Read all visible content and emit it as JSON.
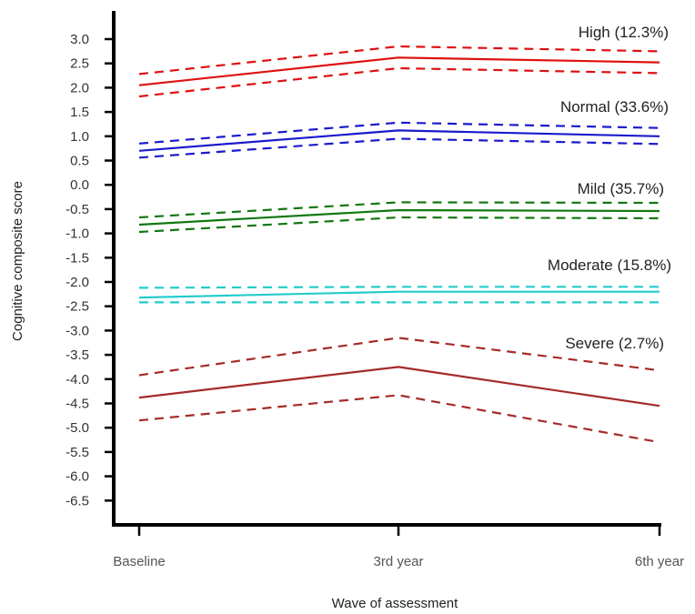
{
  "chart_data": {
    "type": "line",
    "xlabel": "Wave of assessment",
    "ylabel": "Cognitive composite score",
    "categories": [
      "Baseline",
      "3rd year",
      "6th year"
    ],
    "ylim": [
      -7.0,
      3.3
    ],
    "yticks": [
      3.0,
      2.5,
      2.0,
      1.5,
      1.0,
      0.5,
      0.0,
      -0.5,
      -1.0,
      -1.5,
      -2.0,
      -2.5,
      -3.0,
      -3.5,
      -4.0,
      -4.5,
      -5.0,
      -5.5,
      -6.0,
      -6.5
    ],
    "ytick_labels": [
      "3.0",
      "2.5",
      "2.0",
      "1.5",
      "1.0",
      "0.5",
      "0.0",
      "-0.5",
      "-1.0",
      "-1.5",
      "-2.0",
      "-2.5",
      "-3.0",
      "-3.5",
      "-4.0",
      "-4.5",
      "-5.0",
      "-5.5",
      "-6.0",
      "-6.5"
    ],
    "grid": false,
    "series": [
      {
        "name": "High (12.3%)",
        "color": "#dd1111",
        "values": [
          2.05,
          2.62,
          2.52
        ],
        "upper": [
          2.28,
          2.85,
          2.75
        ],
        "lower": [
          1.82,
          2.4,
          2.3
        ]
      },
      {
        "name": "Normal (33.6%)",
        "color": "#1a1acc",
        "values": [
          0.7,
          1.12,
          1.0
        ],
        "upper": [
          0.85,
          1.28,
          1.17
        ],
        "lower": [
          0.56,
          0.95,
          0.84
        ]
      },
      {
        "name": "Mild (35.7%)",
        "color": "#117711",
        "values": [
          -0.82,
          -0.52,
          -0.54
        ],
        "upper": [
          -0.67,
          -0.36,
          -0.37
        ],
        "lower": [
          -0.97,
          -0.67,
          -0.69
        ]
      },
      {
        "name": "Moderate (15.8%)",
        "color": "#22cccc",
        "values": [
          -2.32,
          -2.2,
          -2.2
        ],
        "upper": [
          -2.12,
          -2.1,
          -2.1
        ],
        "lower": [
          -2.42,
          -2.42,
          -2.42
        ]
      },
      {
        "name": "Severe (2.7%)",
        "color": "#a52a2a",
        "values": [
          -4.38,
          -3.75,
          -4.55
        ],
        "upper": [
          -3.92,
          -3.15,
          -3.82
        ],
        "lower": [
          -4.85,
          -4.33,
          -5.3
        ]
      }
    ]
  }
}
